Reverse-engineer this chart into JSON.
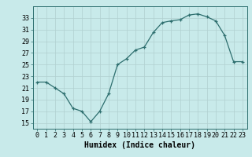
{
  "x": [
    0,
    1,
    2,
    3,
    4,
    5,
    6,
    7,
    8,
    9,
    10,
    11,
    12,
    13,
    14,
    15,
    16,
    17,
    18,
    19,
    20,
    21,
    22,
    23
  ],
  "y": [
    22,
    22,
    21,
    20,
    17.5,
    17,
    15.2,
    17,
    20,
    25,
    26,
    27.5,
    28,
    30.5,
    32.2,
    32.5,
    32.7,
    33.5,
    33.7,
    33.2,
    32.5,
    30,
    25.5,
    25.5
  ],
  "line_color": "#2d6e6e",
  "bg_color": "#c8eaea",
  "grid_color": "#b0d0d0",
  "xlabel": "Humidex (Indice chaleur)",
  "xlabel_fontsize": 7,
  "tick_fontsize": 6,
  "ylim": [
    14,
    35
  ],
  "yticks": [
    15,
    17,
    19,
    21,
    23,
    25,
    27,
    29,
    31,
    33
  ],
  "xticks": [
    0,
    1,
    2,
    3,
    4,
    5,
    6,
    7,
    8,
    9,
    10,
    11,
    12,
    13,
    14,
    15,
    16,
    17,
    18,
    19,
    20,
    21,
    22,
    23
  ],
  "xlim": [
    -0.5,
    23.5
  ]
}
